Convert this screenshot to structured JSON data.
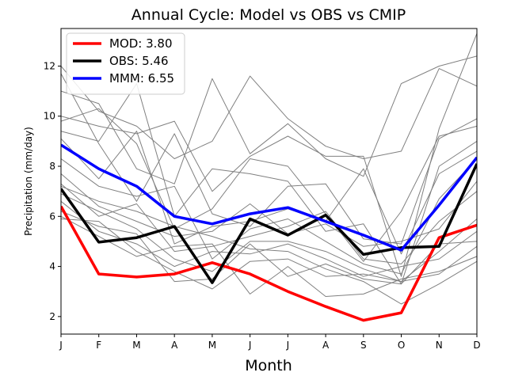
{
  "chart_data": {
    "type": "line",
    "title": "Annual Cycle: Model vs OBS vs CMIP",
    "xlabel": "Month",
    "ylabel": "Precipitation (mm/day)",
    "categories": [
      "J",
      "F",
      "M",
      "A",
      "M",
      "J",
      "J",
      "A",
      "S",
      "O",
      "N",
      "D"
    ],
    "ylim": [
      1.3,
      13.5
    ],
    "yticks": [
      2,
      4,
      6,
      8,
      10,
      12
    ],
    "legend_position": "top-left",
    "series": [
      {
        "name": "MOD",
        "legend": "MOD: 3.80",
        "color": "#ff0000",
        "values": [
          6.4,
          3.7,
          3.58,
          3.7,
          4.15,
          3.7,
          3.0,
          2.4,
          1.85,
          2.15,
          5.15,
          5.65
        ]
      },
      {
        "name": "OBS",
        "legend": "OBS: 5.46",
        "color": "#000000",
        "values": [
          7.1,
          4.97,
          5.15,
          5.6,
          3.35,
          5.9,
          5.25,
          6.05,
          4.48,
          4.75,
          4.8,
          8.1
        ]
      },
      {
        "name": "MMM",
        "legend": "MMM: 6.55",
        "color": "#0000ff",
        "values": [
          8.85,
          7.9,
          7.2,
          6.0,
          5.7,
          6.1,
          6.35,
          5.8,
          5.25,
          4.65,
          6.45,
          8.35
        ]
      }
    ],
    "ensemble_color": "#808080",
    "ensemble": [
      [
        12.0,
        10.2,
        9.6,
        8.3,
        9.0,
        11.6,
        9.9,
        8.8,
        8.3,
        8.6,
        11.9,
        11.2
      ],
      [
        11.0,
        10.5,
        7.9,
        7.3,
        11.5,
        8.5,
        9.7,
        8.3,
        7.6,
        11.3,
        12.0,
        12.4
      ],
      [
        10.0,
        9.6,
        9.3,
        9.8,
        7.0,
        8.4,
        9.2,
        8.4,
        8.4,
        3.6,
        9.5,
        13.3
      ],
      [
        9.8,
        10.3,
        8.9,
        5.5,
        6.3,
        8.3,
        8.0,
        6.1,
        4.2,
        6.2,
        9.2,
        9.6
      ],
      [
        9.4,
        9.0,
        11.3,
        6.0,
        7.9,
        7.7,
        7.4,
        5.4,
        5.7,
        3.3,
        8.0,
        9.0
      ],
      [
        11.7,
        8.9,
        6.6,
        9.3,
        6.1,
        5.6,
        7.2,
        7.3,
        5.1,
        4.9,
        9.1,
        9.9
      ],
      [
        9.1,
        7.5,
        9.4,
        4.9,
        5.6,
        5.8,
        6.3,
        5.8,
        7.9,
        4.5,
        7.7,
        8.6
      ],
      [
        8.3,
        7.2,
        6.8,
        7.2,
        4.3,
        5.5,
        5.9,
        5.0,
        4.1,
        3.7,
        6.7,
        8.3
      ],
      [
        7.7,
        6.4,
        5.8,
        5.2,
        5.4,
        6.5,
        5.3,
        5.7,
        4.8,
        5.0,
        5.5,
        7.4
      ],
      [
        7.3,
        6.0,
        6.5,
        4.6,
        4.8,
        5.2,
        5.6,
        6.2,
        4.3,
        4.1,
        5.8,
        7.0
      ],
      [
        6.9,
        6.2,
        5.5,
        4.3,
        3.8,
        5.0,
        5.0,
        4.6,
        3.9,
        3.4,
        4.6,
        5.9
      ],
      [
        6.6,
        5.4,
        4.9,
        4.0,
        4.6,
        4.5,
        4.9,
        4.3,
        3.6,
        4.0,
        4.3,
        5.4
      ],
      [
        6.2,
        5.6,
        5.3,
        3.4,
        3.5,
        4.9,
        3.6,
        4.1,
        3.5,
        3.3,
        4.9,
        5.0
      ],
      [
        5.9,
        5.8,
        4.6,
        3.8,
        3.1,
        4.2,
        4.3,
        3.6,
        3.7,
        3.4,
        3.7,
        4.8
      ],
      [
        7.2,
        6.6,
        6.2,
        5.6,
        5.2,
        4.7,
        4.6,
        3.9,
        3.4,
        2.5,
        3.3,
        4.2
      ],
      [
        6.0,
        5.2,
        4.4,
        4.8,
        4.9,
        2.9,
        4.0,
        2.8,
        2.9,
        3.5,
        3.8,
        4.4
      ]
    ]
  }
}
